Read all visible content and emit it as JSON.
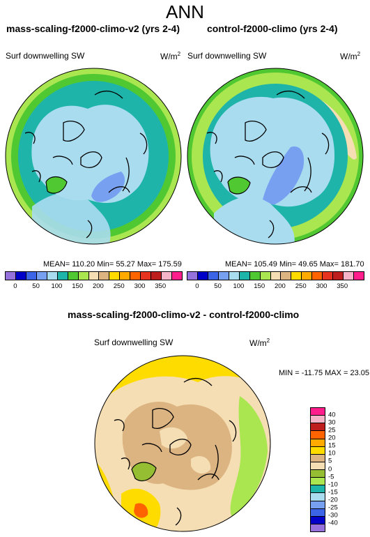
{
  "title": "ANN",
  "left_panel": {
    "title": "mass-scaling-f2000-climo-v2 (yrs 2-4)",
    "variable": "Surf downwelling SW",
    "units_base": "W/m",
    "units_exp": "2",
    "stats": "MEAN= 110.20  Min=  55.27  Max= 175.59"
  },
  "right_panel": {
    "title": "control-f2000-climo (yrs 2-4)",
    "variable": "Surf downwelling SW",
    "units_base": "W/m",
    "units_exp": "2",
    "stats": "MEAN= 105.49  Min=  49.65  Max= 181.70"
  },
  "diff_panel": {
    "title": "mass-scaling-f2000-climo-v2 - control-f2000-climo",
    "variable": "Surf downwelling SW",
    "units_base": "W/m",
    "units_exp": "2",
    "minmax": "MIN = -11.75 MAX =  23.05"
  },
  "abs_colorbar": {
    "labels": [
      "0",
      "50",
      "100",
      "150",
      "200",
      "250",
      "300",
      "350"
    ],
    "colors": [
      "#9673dc",
      "#0000c8",
      "#3c64e6",
      "#78a0f0",
      "#aadcf0",
      "#1eb4aa",
      "#50c832",
      "#aae650",
      "#f5deb3",
      "#dcb482",
      "#ffdc00",
      "#ffaa00",
      "#ff6400",
      "#e6321e",
      "#be1e1e",
      "#f5b4c8",
      "#ff1e8c"
    ]
  },
  "diff_colorbar": {
    "labels": [
      "40",
      "30",
      "25",
      "20",
      "15",
      "10",
      "5",
      "0",
      "-5",
      "-10",
      "-15",
      "-20",
      "-25",
      "-30",
      "-40"
    ],
    "colors": [
      "#ff1e8c",
      "#f5b4c8",
      "#be1e1e",
      "#ff6400",
      "#ffaa00",
      "#ffdc00",
      "#dcb482",
      "#f5deb3",
      "#96be32",
      "#aae650",
      "#1eb4aa",
      "#aadcf0",
      "#78a0f0",
      "#3c64e6",
      "#0000c8",
      "#9673dc"
    ]
  }
}
